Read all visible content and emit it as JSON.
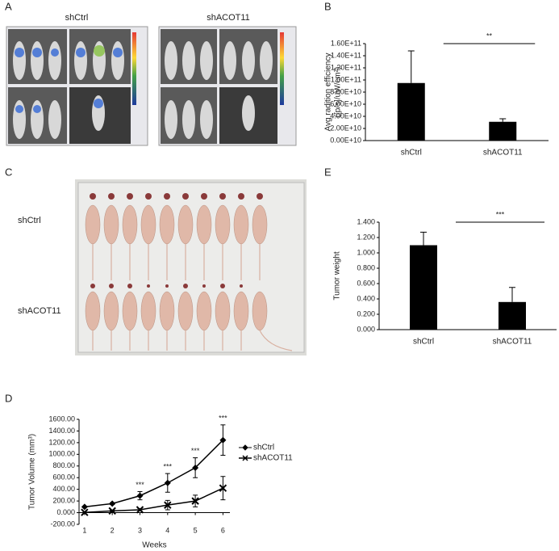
{
  "panels": {
    "a": "A",
    "b": "B",
    "c": "C",
    "d": "D",
    "e": "E"
  },
  "photo_a": {
    "captions": [
      "shCtrl",
      "shACOT11"
    ]
  },
  "photo_c": {
    "captions": [
      "shCtrl",
      "shACOT11"
    ]
  },
  "chart_data": [
    {
      "type": "bar",
      "ylabel": [
        "Avg radition efficiency",
        "([p/s]/uW/cm²)"
      ],
      "categories": [
        "shCtrl",
        "shACOT11"
      ],
      "values": [
        95000000000,
        31000000000
      ],
      "errors": [
        53000000000,
        5000000000
      ],
      "color": "#000000",
      "ylim": [
        0,
        160000000000
      ],
      "yticks": [
        {
          "value": 0,
          "label": "0.00E+10"
        },
        {
          "value": 20000000000,
          "label": "2.00E+10"
        },
        {
          "value": 40000000000,
          "label": "4.00E+10"
        },
        {
          "value": 60000000000,
          "label": "6.00E+10"
        },
        {
          "value": 80000000000,
          "label": "8.00E+10"
        },
        {
          "value": 100000000000,
          "label": "1.00E+11"
        },
        {
          "value": 120000000000,
          "label": "1.20E+11"
        },
        {
          "value": 140000000000,
          "label": "1.40E+11"
        },
        {
          "value": 160000000000,
          "label": "1.60E+11"
        }
      ],
      "significance": "**"
    },
    {
      "type": "bar",
      "ylabel": [
        "Tumor weight"
      ],
      "categories": [
        "shCtrl",
        "shACOT11"
      ],
      "values": [
        1.1,
        0.36
      ],
      "errors": [
        0.17,
        0.19
      ],
      "color": "#000000",
      "ylim": [
        0,
        1.4
      ],
      "yticks": [
        {
          "value": 0,
          "label": "0.000"
        },
        {
          "value": 0.2,
          "label": "0.200"
        },
        {
          "value": 0.4,
          "label": "0.400"
        },
        {
          "value": 0.6,
          "label": "0.600"
        },
        {
          "value": 0.8,
          "label": "0.800"
        },
        {
          "value": 1,
          "label": "1.000"
        },
        {
          "value": 1.2,
          "label": "1.200"
        },
        {
          "value": 1.4,
          "label": "1.400"
        }
      ],
      "significance": "***"
    },
    {
      "type": "line",
      "ylabel": "Tumor Volume (mm³)",
      "xlabel": "Weeks",
      "x": [
        1,
        2,
        3,
        4,
        5,
        6
      ],
      "xlim": [
        0.8,
        6.25
      ],
      "xticks": [
        1,
        2,
        3,
        4,
        5,
        6
      ],
      "ylim": [
        -200,
        1600
      ],
      "yticks": [
        {
          "value": -200,
          "label": "-200.00"
        },
        {
          "value": 0,
          "label": "0.000"
        },
        {
          "value": 200,
          "label": "200.00"
        },
        {
          "value": 400,
          "label": "400.00"
        },
        {
          "value": 600,
          "label": "600.00"
        },
        {
          "value": 800,
          "label": "800.00"
        },
        {
          "value": 1000,
          "label": "1000.00"
        },
        {
          "value": 1200,
          "label": "1200.00"
        },
        {
          "value": 1400,
          "label": "1400.00"
        },
        {
          "value": 1600,
          "label": "1600.00"
        }
      ],
      "series": [
        {
          "name": "shCtrl",
          "color": "#000000",
          "marker": "diamond",
          "values": [
            100,
            155,
            290,
            510,
            770,
            1244
          ],
          "errors": [
            10,
            15,
            70,
            160,
            170,
            260
          ]
        },
        {
          "name": "shACOT11",
          "color": "#000000",
          "marker": "x",
          "values": [
            5,
            30,
            50,
            130,
            200,
            420
          ],
          "errors": [
            0,
            10,
            20,
            80,
            100,
            200
          ]
        }
      ],
      "significance": [
        {
          "x": 3,
          "label": "***"
        },
        {
          "x": 4,
          "label": "***"
        },
        {
          "x": 5,
          "label": "***"
        },
        {
          "x": 6,
          "label": "***"
        }
      ]
    }
  ]
}
